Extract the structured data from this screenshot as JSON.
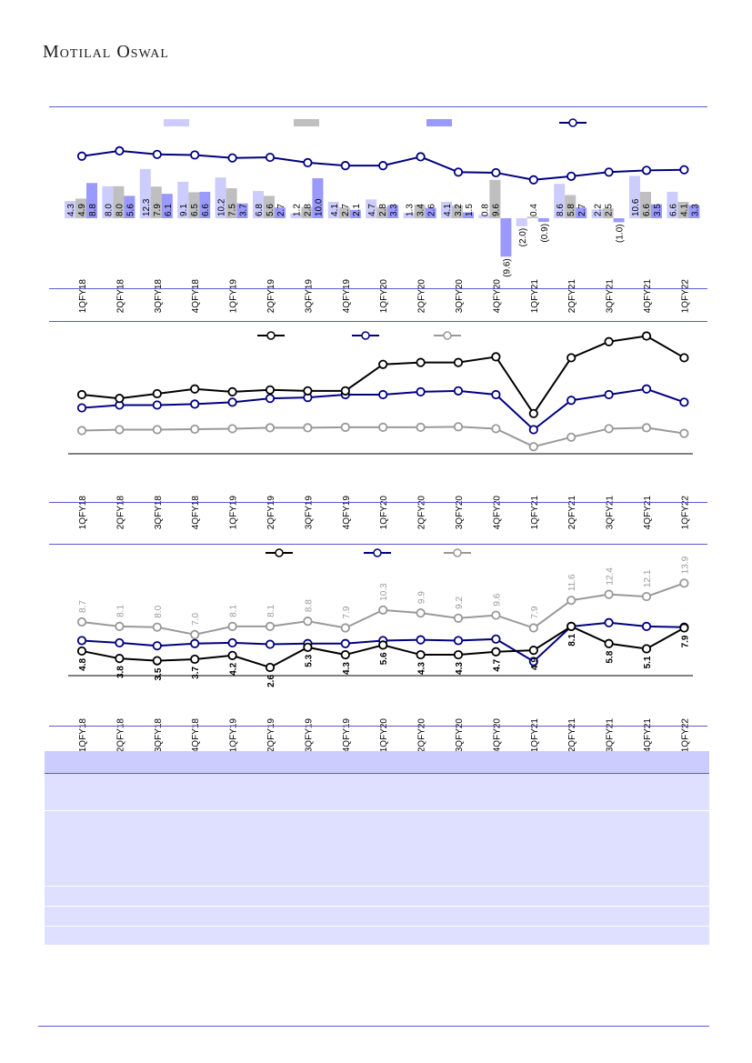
{
  "header": {
    "brand": "Motilal Oswal"
  },
  "colors": {
    "bar1": "#ccccff",
    "bar2": "#bfbfbf",
    "bar3": "#9999ff",
    "navy": "#000080",
    "black": "#000000",
    "grey": "#999999"
  },
  "quarters": [
    "1QFY18",
    "2QFY18",
    "3QFY18",
    "4QFY18",
    "1QFY19",
    "2QFY19",
    "3QFY19",
    "4QFY19",
    "1QFY20",
    "2QFY20",
    "3QFY20",
    "4QFY20",
    "1QFY21",
    "2QFY21",
    "3QFY21",
    "4QFY21",
    "1QFY22"
  ],
  "chart_data": [
    {
      "type": "bar",
      "categories": [
        "1QFY18",
        "2QFY18",
        "3QFY18",
        "4QFY18",
        "1QFY19",
        "2QFY19",
        "3QFY19",
        "4QFY19",
        "1QFY20",
        "2QFY20",
        "3QFY20",
        "4QFY20",
        "1QFY21",
        "2QFY21",
        "3QFY21",
        "4QFY21",
        "1QFY22"
      ],
      "series": [
        {
          "values": [
            4.3,
            8.0,
            12.3,
            9.1,
            10.2,
            6.8,
            1.2,
            4.1,
            4.7,
            1.3,
            4.1,
            0.8,
            -2.0,
            8.6,
            2.2,
            10.6,
            6.6
          ]
        },
        {
          "values": [
            4.9,
            8.0,
            7.9,
            6.5,
            7.5,
            5.6,
            2.8,
            2.7,
            2.8,
            3.4,
            3.2,
            9.6,
            0.4,
            5.8,
            2.5,
            6.6,
            4.1
          ]
        },
        {
          "values": [
            8.8,
            5.6,
            6.1,
            6.6,
            3.7,
            2.7,
            10.0,
            2.1,
            3.3,
            2.6,
            1.5,
            -9.6,
            -0.9,
            2.7,
            -1.0,
            3.5,
            3.3
          ]
        }
      ],
      "line_series": {
        "values": [
          10.5,
          11.4,
          10.8,
          10.7,
          10.2,
          10.3,
          9.4,
          8.9,
          8.9,
          10.4,
          7.8,
          7.7,
          6.5,
          7.1,
          7.8,
          8.1,
          8.2
        ]
      }
    },
    {
      "type": "line",
      "categories": [
        "1QFY18",
        "2QFY18",
        "3QFY18",
        "4QFY18",
        "1QFY19",
        "2QFY19",
        "3QFY19",
        "4QFY19",
        "1QFY20",
        "2QFY20",
        "3QFY20",
        "4QFY20",
        "1QFY21",
        "2QFY21",
        "3QFY21",
        "4QFY21",
        "1QFY22"
      ],
      "series": [
        {
          "values": [
            17.0,
            16.2,
            17.2,
            18.2,
            17.6,
            18.0,
            17.8,
            17.8,
            23.4,
            23.8,
            23.8,
            25.0,
            13.0,
            24.8,
            28.2,
            29.4,
            24.8
          ]
        },
        {
          "values": [
            14.2,
            14.8,
            14.8,
            15.0,
            15.4,
            16.2,
            16.4,
            17.0,
            17.0,
            17.6,
            17.8,
            17.0,
            9.6,
            15.8,
            17.0,
            18.2,
            15.4
          ]
        },
        {
          "values": [
            9.4,
            9.6,
            9.6,
            9.7,
            9.8,
            10.0,
            10.0,
            10.1,
            10.1,
            10.1,
            10.2,
            9.8,
            6.0,
            8.0,
            9.8,
            10.0,
            8.8
          ]
        }
      ]
    },
    {
      "type": "line",
      "categories": [
        "1QFY18",
        "2QFY18",
        "3QFY18",
        "4QFY18",
        "1QFY19",
        "2QFY19",
        "3QFY19",
        "4QFY19",
        "1QFY20",
        "2QFY20",
        "3QFY20",
        "4QFY20",
        "1QFY21",
        "2QFY21",
        "3QFY21",
        "4QFY21",
        "1QFY22"
      ],
      "series": [
        {
          "values": [
            4.8,
            3.8,
            3.5,
            3.7,
            4.2,
            2.6,
            5.3,
            4.3,
            5.6,
            4.3,
            4.3,
            4.7,
            4.9,
            8.1,
            5.8,
            5.1,
            7.9
          ]
        },
        {
          "values": [
            6.2,
            5.9,
            5.5,
            5.8,
            5.9,
            5.7,
            5.8,
            5.8,
            6.2,
            6.3,
            6.2,
            6.4,
            3.4,
            8.1,
            8.6,
            8.1,
            8.0
          ]
        },
        {
          "values": [
            8.7,
            8.1,
            8.0,
            7.0,
            8.1,
            8.1,
            8.8,
            7.9,
            10.3,
            9.9,
            9.2,
            9.6,
            7.9,
            11.6,
            12.4,
            12.1,
            13.9
          ]
        }
      ]
    }
  ]
}
